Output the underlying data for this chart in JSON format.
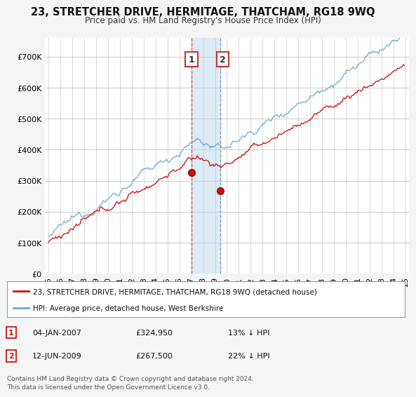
{
  "title": "23, STRETCHER DRIVE, HERMITAGE, THATCHAM, RG18 9WQ",
  "subtitle": "Price paid vs. HM Land Registry's House Price Index (HPI)",
  "ylabel_ticks": [
    "£0",
    "£100K",
    "£200K",
    "£300K",
    "£400K",
    "£500K",
    "£600K",
    "£700K"
  ],
  "ytick_values": [
    0,
    100000,
    200000,
    300000,
    400000,
    500000,
    600000,
    700000
  ],
  "ylim": [
    0,
    760000
  ],
  "xlim_start": 1994.7,
  "xlim_end": 2025.3,
  "hpi_color": "#6fa8d0",
  "price_color": "#cc1111",
  "sale1_date": 2007.01,
  "sale1_price": 324950,
  "sale2_date": 2009.45,
  "sale2_price": 267500,
  "shade_color": "#d6e8f5",
  "legend_label1": "23, STRETCHER DRIVE, HERMITAGE, THATCHAM, RG18 9WQ (detached house)",
  "legend_label2": "HPI: Average price, detached house, West Berkshire",
  "footer": "Contains HM Land Registry data © Crown copyright and database right 2024.\nThis data is licensed under the Open Government Licence v3.0.",
  "background_color": "#f5f5f5",
  "plot_bg_color": "#ffffff",
  "grid_color": "#cccccc"
}
